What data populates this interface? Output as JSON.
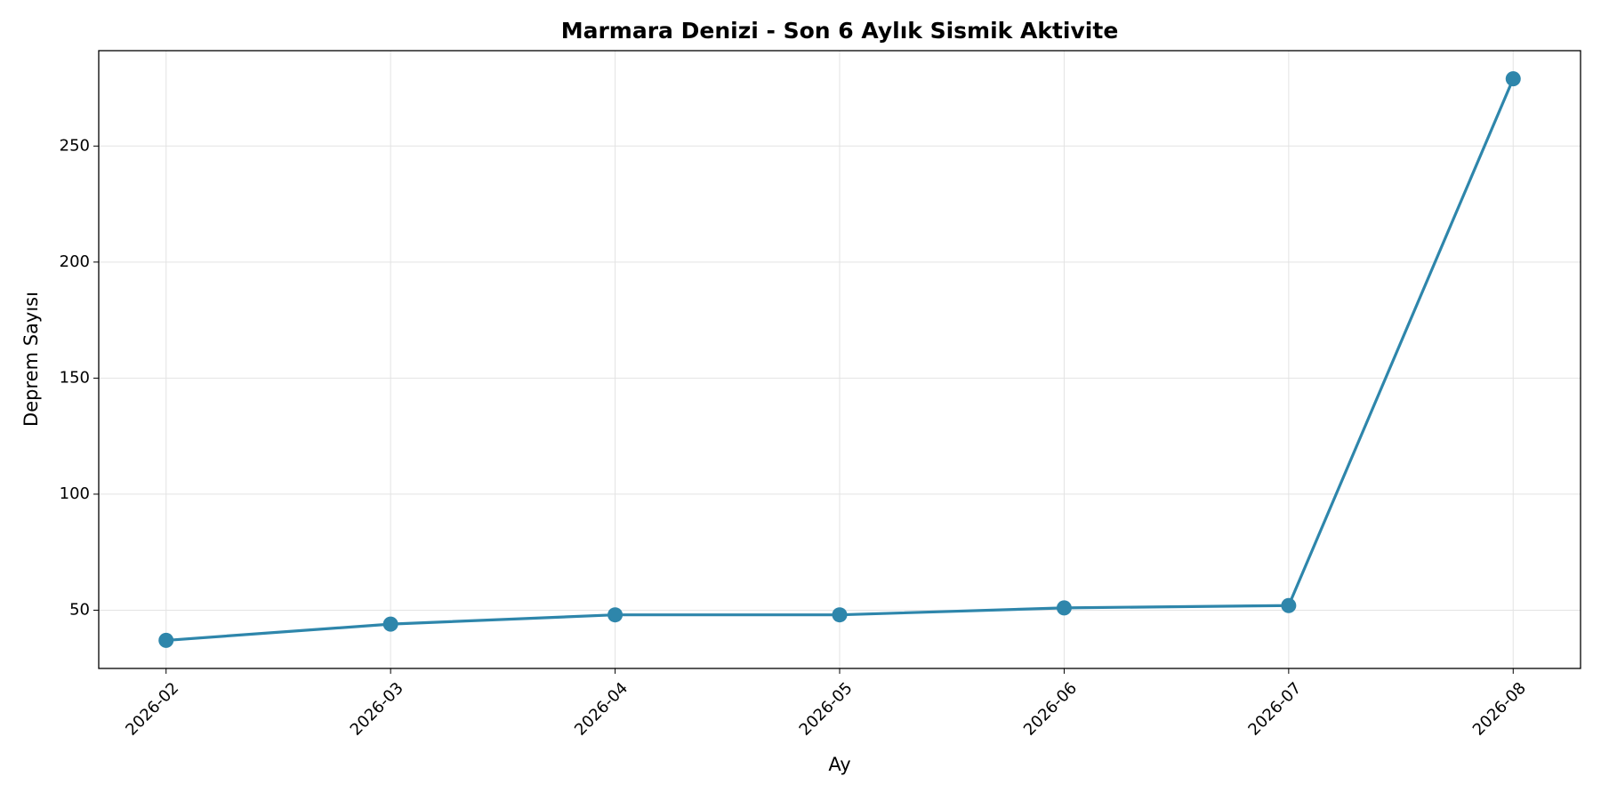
{
  "chart_data": {
    "type": "line",
    "title": "Marmara Denizi - Son 6 Aylık Sismik Aktivite",
    "xlabel": "Ay",
    "ylabel": "Deprem Sayısı",
    "categories": [
      "2026-02",
      "2026-03",
      "2026-04",
      "2026-05",
      "2026-06",
      "2026-07",
      "2026-08"
    ],
    "series": [
      {
        "color": "#2e86ab",
        "values": [
          37,
          44,
          48,
          48,
          51,
          52,
          279
        ]
      }
    ],
    "ylim": [
      24.9,
      291.1
    ],
    "yticks": [
      50,
      100,
      150,
      200,
      250
    ],
    "grid": true
  }
}
